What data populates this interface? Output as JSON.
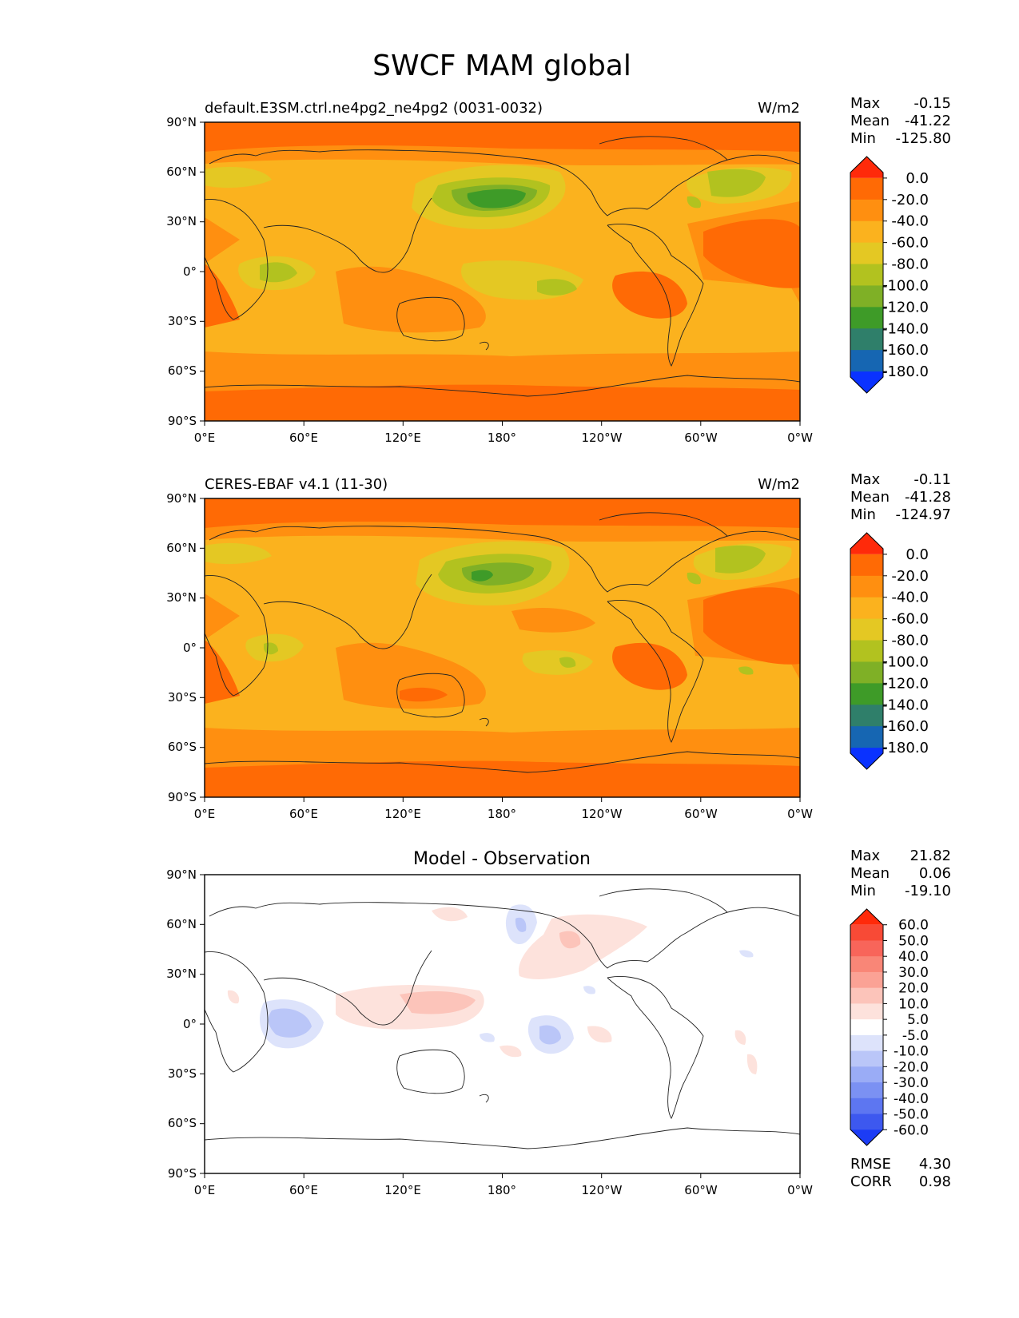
{
  "figure_title": "SWCF MAM global",
  "axes": {
    "lat_ticks": [
      "90°N",
      "60°N",
      "30°N",
      "0°",
      "30°S",
      "60°S",
      "90°S"
    ],
    "lon_ticks": [
      "0°E",
      "60°E",
      "120°E",
      "180°",
      "120°W",
      "60°W",
      "0°W"
    ]
  },
  "panels": [
    {
      "title_left": "default.E3SM.ctrl.ne4pg2_ne4pg2 (0031-0032)",
      "title_center": "",
      "units": "W/m2",
      "stats": [
        {
          "label": "Max",
          "value": "-0.15"
        },
        {
          "label": "Mean",
          "value": "-41.22"
        },
        {
          "label": "Min",
          "value": "-125.80"
        }
      ],
      "colorbar": {
        "levels": [
          "0.0",
          "-20.0",
          "-40.0",
          "-60.0",
          "-80.0",
          "-100.0",
          "-120.0",
          "-140.0",
          "-160.0",
          "-180.0"
        ],
        "colors": [
          "#ff2a0a",
          "#ff6a05",
          "#ff8f10",
          "#fbb21e",
          "#e4c823",
          "#b2c21f",
          "#7fb026",
          "#3e9b28",
          "#2f7f6a",
          "#1666b2",
          "#0a32ff"
        ]
      },
      "footer_stats": []
    },
    {
      "title_left": "CERES-EBAF v4.1 (11-30)",
      "title_center": "",
      "units": "W/m2",
      "stats": [
        {
          "label": "Max",
          "value": "-0.11"
        },
        {
          "label": "Mean",
          "value": "-41.28"
        },
        {
          "label": "Min",
          "value": "-124.97"
        }
      ],
      "colorbar": {
        "levels": [
          "0.0",
          "-20.0",
          "-40.0",
          "-60.0",
          "-80.0",
          "-100.0",
          "-120.0",
          "-140.0",
          "-160.0",
          "-180.0"
        ],
        "colors": [
          "#ff2a0a",
          "#ff6a05",
          "#ff8f10",
          "#fbb21e",
          "#e4c823",
          "#b2c21f",
          "#7fb026",
          "#3e9b28",
          "#2f7f6a",
          "#1666b2",
          "#0a32ff"
        ]
      },
      "footer_stats": []
    },
    {
      "title_left": "",
      "title_center": "Model - Observation",
      "units": "",
      "stats": [
        {
          "label": "Max",
          "value": "21.82"
        },
        {
          "label": "Mean",
          "value": "0.06"
        },
        {
          "label": "Min",
          "value": "-19.10"
        }
      ],
      "colorbar": {
        "levels": [
          "60.0",
          "50.0",
          "40.0",
          "30.0",
          "20.0",
          "10.0",
          "5.0",
          "-5.0",
          "-10.0",
          "-20.0",
          "-30.0",
          "-40.0",
          "-50.0",
          "-60.0"
        ],
        "colors": [
          "#ff2a0a",
          "#f84a36",
          "#f8655a",
          "#f98677",
          "#fba295",
          "#fcc4ba",
          "#fde2dc",
          "#ffffff",
          "#dde3fb",
          "#bac6f8",
          "#9aacf6",
          "#7b91f3",
          "#5d76f1",
          "#3d58ef",
          "#1c3cf5"
        ]
      },
      "footer_stats": [
        {
          "label": "RMSE",
          "value": "4.30"
        },
        {
          "label": "CORR",
          "value": "0.98"
        }
      ]
    }
  ]
}
